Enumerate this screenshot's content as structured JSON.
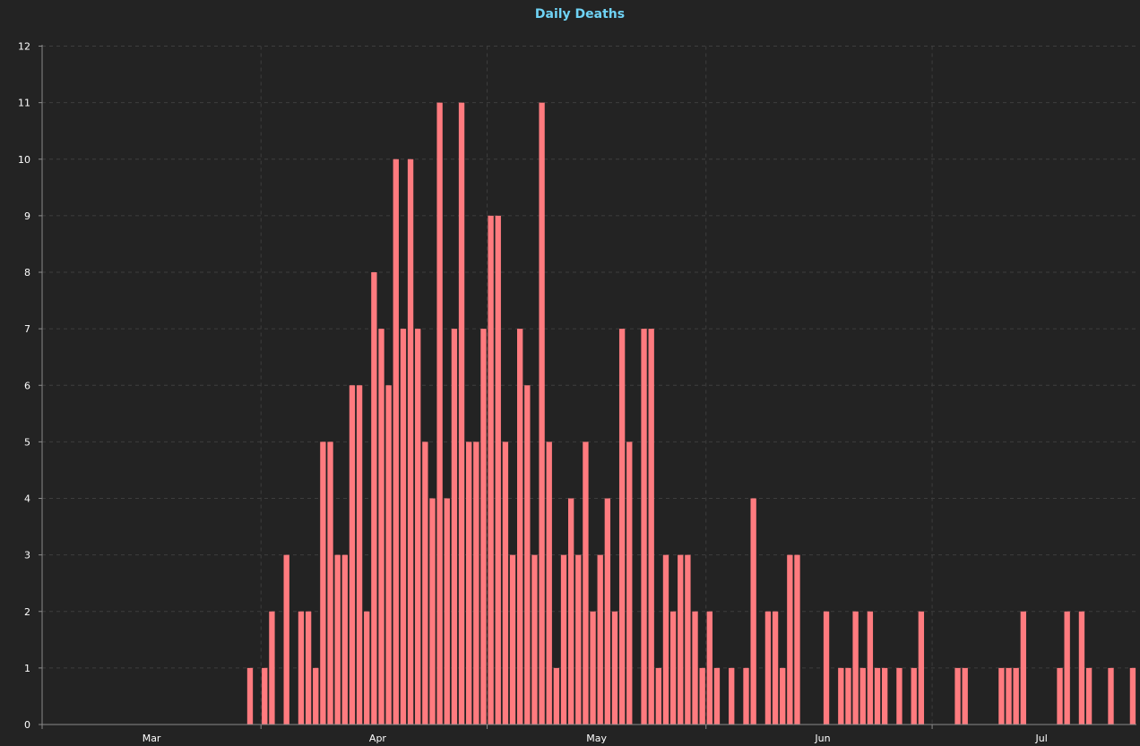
{
  "colors": {
    "background": "#232323",
    "bar": "#ff7b7f",
    "title": "#6fd3f5",
    "axis": "#8a8a8a",
    "grid": "#3e3e3e",
    "tick_text": "#ffffff"
  },
  "chart_data": {
    "type": "bar",
    "title": "Daily Deaths",
    "xlabel": "",
    "ylabel": "",
    "ylim": [
      0,
      12
    ],
    "yticks": [
      0,
      1,
      2,
      3,
      4,
      5,
      6,
      7,
      8,
      9,
      10,
      11,
      12
    ],
    "grid": true,
    "x_start": "Feb 15",
    "month_ticks": [
      {
        "label": "Mar",
        "day_index": 15
      },
      {
        "label": "Apr",
        "day_index": 46
      },
      {
        "label": "May",
        "day_index": 76
      },
      {
        "label": "Jun",
        "day_index": 107
      },
      {
        "label": "Jul",
        "day_index": 137
      }
    ],
    "month_boundaries": [
      0,
      30,
      61,
      91,
      122,
      152
    ],
    "values": [
      0,
      0,
      0,
      0,
      0,
      0,
      0,
      0,
      0,
      0,
      0,
      0,
      0,
      0,
      0,
      0,
      0,
      0,
      0,
      0,
      0,
      0,
      0,
      0,
      0,
      0,
      0,
      0,
      1,
      0,
      1,
      2,
      0,
      3,
      0,
      2,
      2,
      1,
      5,
      5,
      3,
      3,
      6,
      6,
      2,
      8,
      7,
      6,
      10,
      7,
      10,
      7,
      5,
      4,
      11,
      4,
      7,
      11,
      5,
      5,
      7,
      9,
      9,
      5,
      3,
      7,
      6,
      3,
      11,
      5,
      1,
      3,
      4,
      3,
      5,
      2,
      3,
      4,
      2,
      7,
      5,
      0,
      7,
      7,
      1,
      3,
      2,
      3,
      3,
      2,
      1,
      2,
      1,
      0,
      1,
      0,
      1,
      4,
      0,
      2,
      2,
      1,
      3,
      3,
      0,
      0,
      0,
      2,
      0,
      1,
      1,
      2,
      1,
      2,
      1,
      1,
      0,
      1,
      0,
      1,
      2,
      0,
      0,
      0,
      0,
      1,
      1,
      0,
      0,
      0,
      0,
      1,
      1,
      1,
      2,
      0,
      0,
      0,
      0,
      1,
      2,
      0,
      2,
      1,
      0,
      0,
      1,
      0,
      0,
      1
    ]
  }
}
